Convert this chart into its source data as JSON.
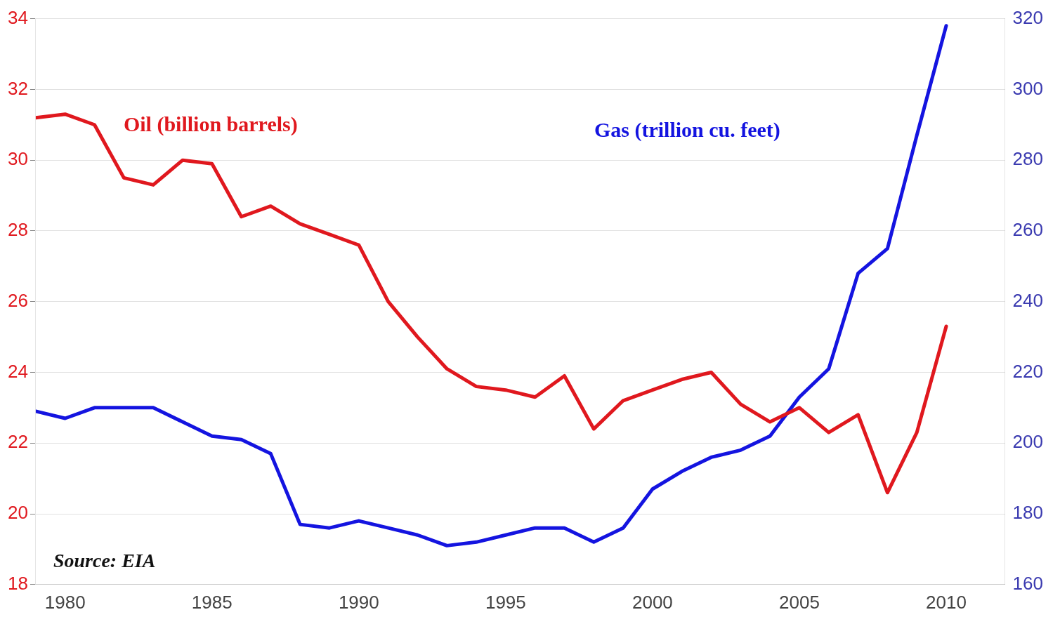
{
  "chart_data": {
    "type": "line",
    "x": [
      1979,
      1980,
      1981,
      1982,
      1983,
      1984,
      1985,
      1986,
      1987,
      1988,
      1989,
      1990,
      1991,
      1992,
      1993,
      1994,
      1995,
      1996,
      1997,
      1998,
      1999,
      2000,
      2001,
      2002,
      2003,
      2004,
      2005,
      2006,
      2007,
      2008,
      2009,
      2010
    ],
    "series": [
      {
        "name": "Oil (billion barrels)",
        "color": "#e0181e",
        "values": [
          31.2,
          31.3,
          31.0,
          29.5,
          29.3,
          30.0,
          29.9,
          28.4,
          28.7,
          28.2,
          27.9,
          27.6,
          26.0,
          25.0,
          24.1,
          23.6,
          23.5,
          23.3,
          23.9,
          22.4,
          23.2,
          23.5,
          23.8,
          24.0,
          23.1,
          22.6,
          23.0,
          22.3,
          22.8,
          20.6,
          22.3,
          25.3
        ]
      },
      {
        "name": "Gas (trillion cu. feet)",
        "color": "#1414e0",
        "axis": "y2",
        "values": [
          209,
          207,
          210,
          210,
          210,
          206,
          202,
          201,
          197,
          177,
          176,
          178,
          176,
          174,
          171,
          172,
          174,
          176,
          176,
          172,
          176,
          187,
          192,
          196,
          198,
          202,
          213,
          221,
          248,
          255,
          287,
          318
        ]
      }
    ],
    "xlim": [
      1979,
      2012
    ],
    "xticks": [
      1980,
      1985,
      1990,
      1995,
      2000,
      2005,
      2010
    ],
    "ylim": [
      18,
      34
    ],
    "yticks": [
      18,
      20,
      22,
      24,
      26,
      28,
      30,
      32,
      34
    ],
    "y2lim": [
      160,
      320
    ],
    "y2ticks": [
      160,
      180,
      200,
      220,
      240,
      260,
      280,
      300,
      320
    ],
    "grid": "y",
    "legend": false,
    "marker": "none",
    "line_style": "solid",
    "annotations": [
      "Source: EIA"
    ]
  }
}
